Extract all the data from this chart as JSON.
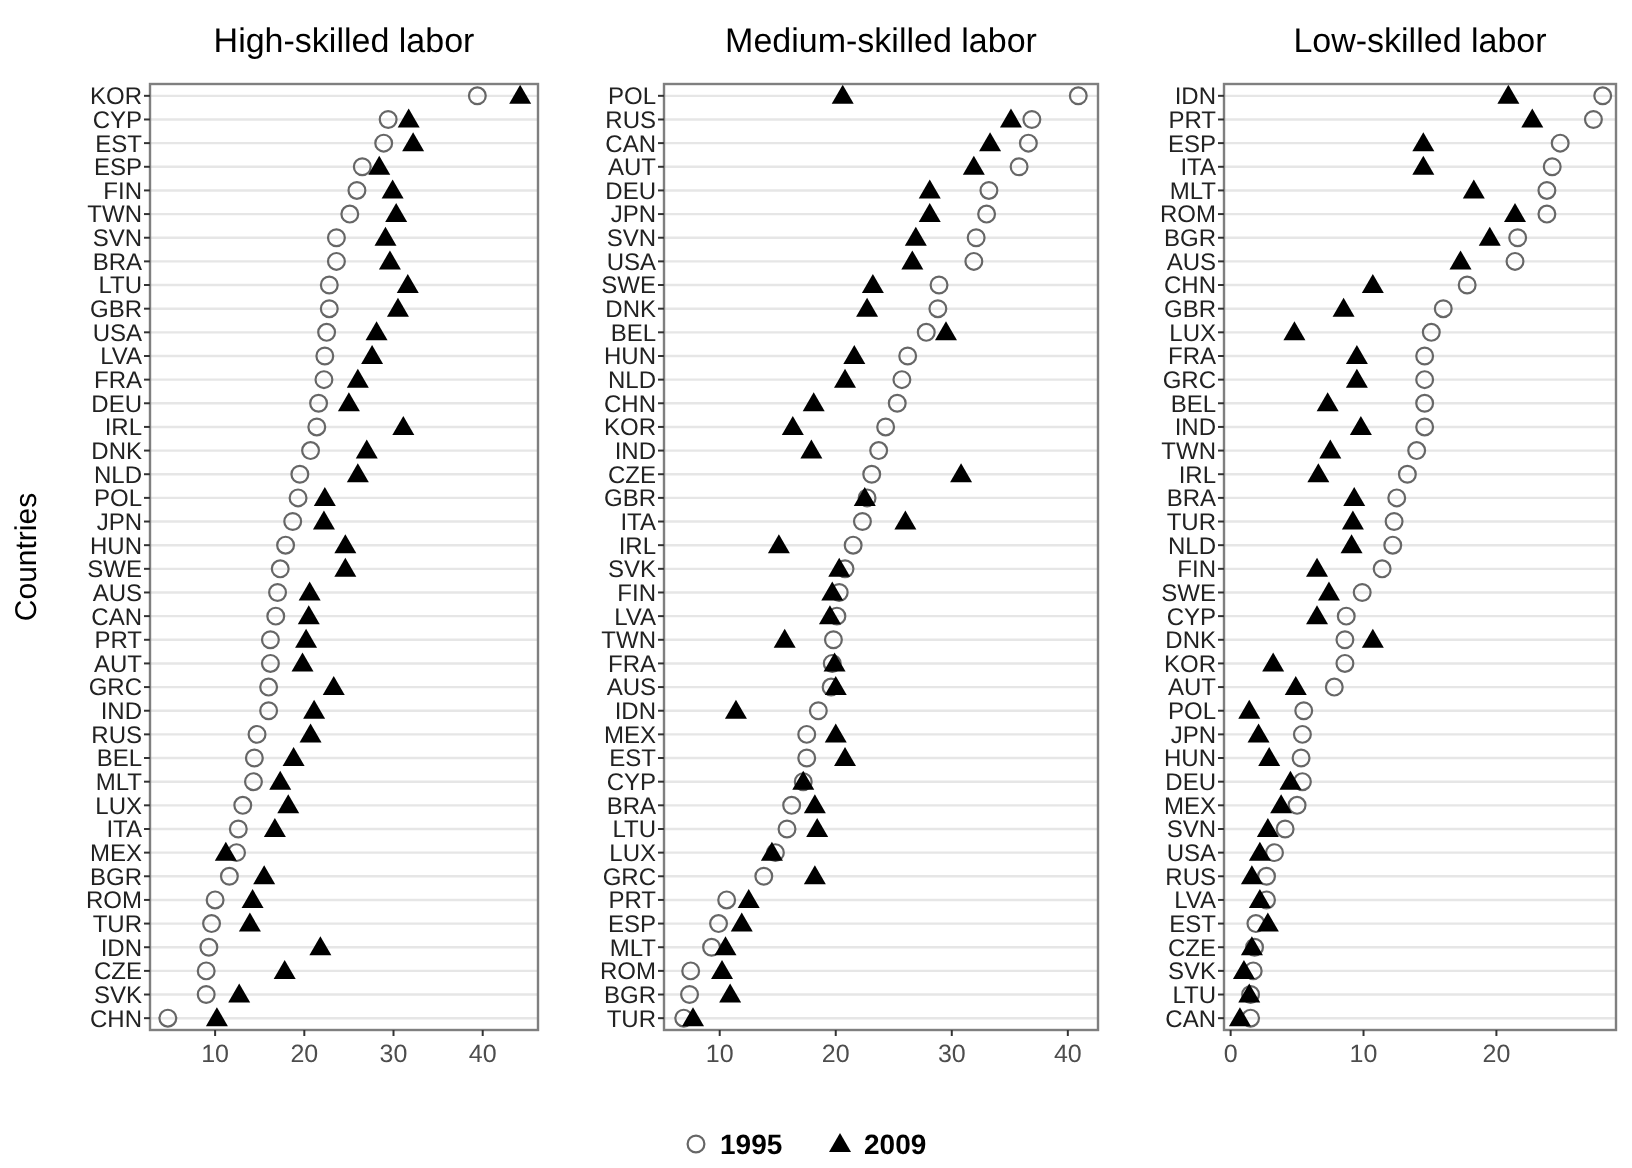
{
  "chart_data": [
    {
      "type": "scatter",
      "orientation": "horizontal",
      "title": "High-skilled labor",
      "ylabel": "Countries",
      "legend": "bottom",
      "grid": "y",
      "xlim": [
        2.7,
        46.2
      ],
      "xticks": [
        10,
        20,
        30,
        40
      ],
      "categories": [
        "KOR",
        "CYP",
        "EST",
        "ESP",
        "FIN",
        "TWN",
        "SVN",
        "BRA",
        "LTU",
        "GBR",
        "USA",
        "LVA",
        "FRA",
        "DEU",
        "IRL",
        "DNK",
        "NLD",
        "POL",
        "JPN",
        "HUN",
        "SWE",
        "AUS",
        "CAN",
        "PRT",
        "AUT",
        "GRC",
        "IND",
        "RUS",
        "BEL",
        "MLT",
        "LUX",
        "ITA",
        "MEX",
        "BGR",
        "ROM",
        "TUR",
        "IDN",
        "CZE",
        "SVK",
        "CHN"
      ],
      "series": [
        {
          "name": "1995",
          "color": "#666666",
          "marker": "circle",
          "values": [
            39.4,
            29.4,
            28.9,
            26.5,
            25.9,
            25.1,
            23.6,
            23.6,
            22.8,
            22.8,
            22.5,
            22.3,
            22.2,
            21.6,
            21.4,
            20.7,
            19.5,
            19.3,
            18.7,
            17.9,
            17.3,
            17.0,
            16.8,
            16.2,
            16.2,
            16.0,
            16.0,
            14.7,
            14.4,
            14.3,
            13.1,
            12.6,
            12.4,
            11.6,
            10.0,
            9.6,
            9.3,
            9.0,
            9.0,
            4.7
          ]
        },
        {
          "name": "2009",
          "color": "#000000",
          "marker": "triangle",
          "values": [
            44.2,
            31.7,
            32.2,
            28.4,
            29.9,
            30.3,
            29.1,
            29.6,
            31.6,
            30.5,
            28.1,
            27.6,
            26.0,
            25.0,
            31.1,
            27.0,
            26.0,
            22.3,
            22.2,
            24.6,
            24.6,
            20.6,
            20.5,
            20.2,
            19.8,
            23.3,
            21.1,
            20.7,
            18.8,
            17.3,
            18.2,
            16.7,
            11.2,
            15.5,
            14.2,
            13.9,
            21.8,
            17.8,
            12.7,
            10.2
          ]
        }
      ]
    },
    {
      "type": "scatter",
      "orientation": "horizontal",
      "title": "Medium-skilled labor",
      "grid": "y",
      "xlim": [
        5.2,
        42.6
      ],
      "xticks": [
        10,
        20,
        30,
        40
      ],
      "categories": [
        "POL",
        "RUS",
        "CAN",
        "AUT",
        "DEU",
        "JPN",
        "SVN",
        "USA",
        "SWE",
        "DNK",
        "BEL",
        "HUN",
        "NLD",
        "CHN",
        "KOR",
        "IND",
        "CZE",
        "GBR",
        "ITA",
        "IRL",
        "SVK",
        "FIN",
        "LVA",
        "TWN",
        "FRA",
        "AUS",
        "IDN",
        "MEX",
        "EST",
        "CYP",
        "BRA",
        "LTU",
        "LUX",
        "GRC",
        "PRT",
        "ESP",
        "MLT",
        "ROM",
        "BGR",
        "TUR"
      ],
      "series": [
        {
          "color": "#666666",
          "marker": "circle",
          "values": [
            40.9,
            36.9,
            36.6,
            35.8,
            33.2,
            33.0,
            32.1,
            31.9,
            28.9,
            28.8,
            27.8,
            26.2,
            25.7,
            25.3,
            24.3,
            23.7,
            23.1,
            22.7,
            22.3,
            21.5,
            20.8,
            20.3,
            20.1,
            19.8,
            19.7,
            19.6,
            18.5,
            17.5,
            17.5,
            17.2,
            16.2,
            15.8,
            14.8,
            13.8,
            10.6,
            9.9,
            9.3,
            7.5,
            7.4,
            6.9
          ]
        },
        {
          "color": "#000000",
          "marker": "triangle",
          "values": [
            20.6,
            35.1,
            33.3,
            31.9,
            28.1,
            28.1,
            26.9,
            26.6,
            23.2,
            22.7,
            29.5,
            21.6,
            20.8,
            18.1,
            16.3,
            17.9,
            30.8,
            22.5,
            26.0,
            15.1,
            20.3,
            19.7,
            19.5,
            15.6,
            19.9,
            20.0,
            11.4,
            20.0,
            20.8,
            17.2,
            18.2,
            18.4,
            14.5,
            18.2,
            12.5,
            11.9,
            10.5,
            10.2,
            10.9,
            7.7
          ]
        }
      ]
    },
    {
      "type": "scatter",
      "orientation": "horizontal",
      "title": "Low-skilled labor",
      "grid": "y",
      "xlim": [
        -0.5,
        29
      ],
      "xticks": [
        0,
        10,
        20
      ],
      "categories": [
        "IDN",
        "PRT",
        "ESP",
        "ITA",
        "MLT",
        "ROM",
        "BGR",
        "AUS",
        "CHN",
        "GBR",
        "LUX",
        "FRA",
        "GRC",
        "BEL",
        "IND",
        "TWN",
        "IRL",
        "BRA",
        "TUR",
        "NLD",
        "FIN",
        "SWE",
        "CYP",
        "DNK",
        "KOR",
        "AUT",
        "POL",
        "JPN",
        "HUN",
        "DEU",
        "MEX",
        "SVN",
        "USA",
        "RUS",
        "LVA",
        "EST",
        "CZE",
        "SVK",
        "LTU",
        "CAN"
      ],
      "series": [
        {
          "color": "#666666",
          "marker": "circle",
          "values": [
            28.0,
            27.3,
            24.8,
            24.2,
            23.8,
            23.8,
            21.6,
            21.4,
            17.8,
            16.0,
            15.1,
            14.6,
            14.6,
            14.6,
            14.6,
            14.0,
            13.3,
            12.5,
            12.3,
            12.2,
            11.4,
            9.9,
            8.7,
            8.6,
            8.6,
            7.8,
            5.5,
            5.4,
            5.3,
            5.4,
            5.0,
            4.1,
            3.3,
            2.7,
            2.7,
            1.9,
            1.8,
            1.7,
            1.5,
            1.5
          ]
        },
        {
          "color": "#000000",
          "marker": "triangle",
          "values": [
            20.9,
            22.7,
            14.5,
            14.5,
            18.3,
            21.4,
            19.5,
            17.3,
            10.7,
            8.5,
            4.8,
            9.5,
            9.5,
            7.3,
            9.8,
            7.5,
            6.6,
            9.3,
            9.2,
            9.1,
            6.5,
            7.4,
            6.5,
            10.7,
            3.2,
            4.9,
            1.4,
            2.1,
            2.9,
            4.5,
            3.8,
            2.8,
            2.2,
            1.6,
            2.2,
            2.8,
            1.6,
            1.0,
            1.4,
            0.7
          ]
        }
      ]
    }
  ]
}
